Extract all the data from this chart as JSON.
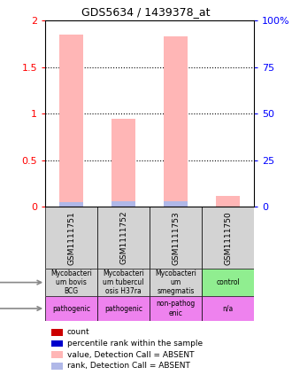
{
  "title": "GDS5634 / 1439378_at",
  "samples": [
    "GSM1111751",
    "GSM1111752",
    "GSM1111753",
    "GSM1111750"
  ],
  "bar_values": [
    1.85,
    0.95,
    1.83,
    0.12
  ],
  "rank_values": [
    0.05,
    0.06,
    0.06,
    0.0
  ],
  "ylim_left": [
    0,
    2
  ],
  "ylim_right": [
    0,
    100
  ],
  "yticks_left": [
    0,
    0.5,
    1,
    1.5,
    2
  ],
  "yticks_right": [
    0,
    25,
    50,
    75,
    100
  ],
  "ytick_labels_right": [
    "0",
    "25",
    "50",
    "75",
    "100%"
  ],
  "bar_color": "#ffb6b6",
  "rank_color": "#b0b8e8",
  "infection_labels": [
    "Mycobacteri\num bovis\nBCG",
    "Mycobacteri\num tubercul\nosis H37ra",
    "Mycobacteri\num\nsmegmatis",
    "control"
  ],
  "infection_colors": [
    "#d3d3d3",
    "#d3d3d3",
    "#d3d3d3",
    "#90ee90"
  ],
  "species_labels": [
    "pathogenic",
    "pathogenic",
    "non-pathog\nenic",
    "n/a"
  ],
  "species_colors": [
    "#ee82ee",
    "#ee82ee",
    "#ee82ee",
    "#ee82ee"
  ],
  "legend_items": [
    {
      "color": "#cc0000",
      "label": "count"
    },
    {
      "color": "#0000cc",
      "label": "percentile rank within the sample"
    },
    {
      "color": "#ffb6b6",
      "label": "value, Detection Call = ABSENT"
    },
    {
      "color": "#b0b8e8",
      "label": "rank, Detection Call = ABSENT"
    }
  ],
  "sample_box_color": "#d3d3d3",
  "grid_color": "black"
}
